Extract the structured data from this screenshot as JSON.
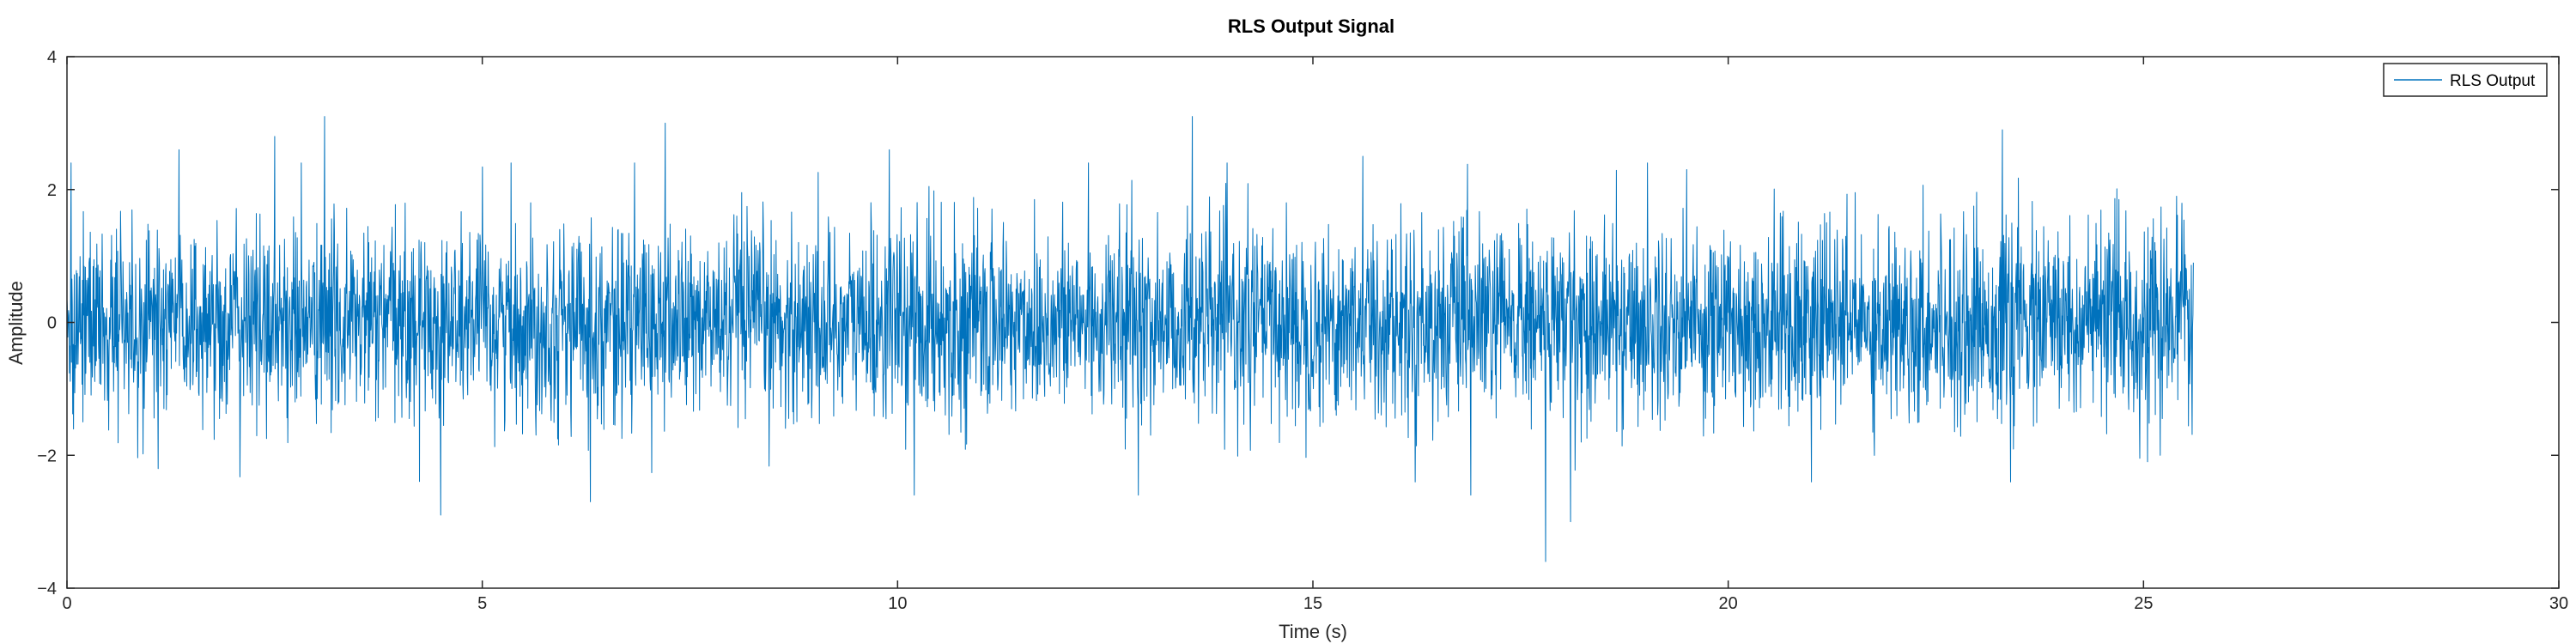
{
  "chart_data": {
    "type": "line",
    "title": "RLS Output Signal",
    "xlabel": "Time (s)",
    "ylabel": "Amplitude",
    "xlim": [
      0,
      30
    ],
    "ylim": [
      -4,
      4
    ],
    "xticks": [
      0,
      5,
      10,
      15,
      20,
      25,
      30
    ],
    "yticks": [
      -4,
      -2,
      0,
      2,
      4
    ],
    "xtick_labels": [
      "0",
      "5",
      "10",
      "15",
      "20",
      "25",
      "30"
    ],
    "ytick_labels": [
      "−4",
      "−2",
      "0",
      "2",
      "4"
    ],
    "grid": false,
    "legend_position": "top-right",
    "colors": {
      "series": "#0072BD",
      "axes": "#262626"
    },
    "x_range_of_data": [
      0,
      25.6
    ],
    "series": [
      {
        "name": "RLS Output",
        "envelope_note": "Dense noise-like signal; representative extrema read from the plot",
        "peaks": [
          {
            "x": 0.05,
            "y": 2.4
          },
          {
            "x": 1.35,
            "y": 2.6
          },
          {
            "x": 2.5,
            "y": 2.8
          },
          {
            "x": 3.1,
            "y": 3.1
          },
          {
            "x": 7.2,
            "y": 3.0
          },
          {
            "x": 9.9,
            "y": 2.6
          },
          {
            "x": 12.3,
            "y": 2.4
          },
          {
            "x": 13.55,
            "y": 3.1
          },
          {
            "x": 15.6,
            "y": 2.5
          },
          {
            "x": 19.5,
            "y": 2.3
          },
          {
            "x": 23.3,
            "y": 2.9
          },
          {
            "x": 25.4,
            "y": 1.9
          }
        ],
        "troughs": [
          {
            "x": 1.1,
            "y": -2.2
          },
          {
            "x": 4.5,
            "y": -2.9
          },
          {
            "x": 6.3,
            "y": -2.7
          },
          {
            "x": 10.2,
            "y": -2.6
          },
          {
            "x": 12.9,
            "y": -2.6
          },
          {
            "x": 16.9,
            "y": -2.6
          },
          {
            "x": 17.8,
            "y": -3.6
          },
          {
            "x": 18.1,
            "y": -3.0
          },
          {
            "x": 21.0,
            "y": -2.4
          },
          {
            "x": 23.4,
            "y": -2.4
          },
          {
            "x": 25.2,
            "y": -2.0
          }
        ]
      }
    ]
  }
}
